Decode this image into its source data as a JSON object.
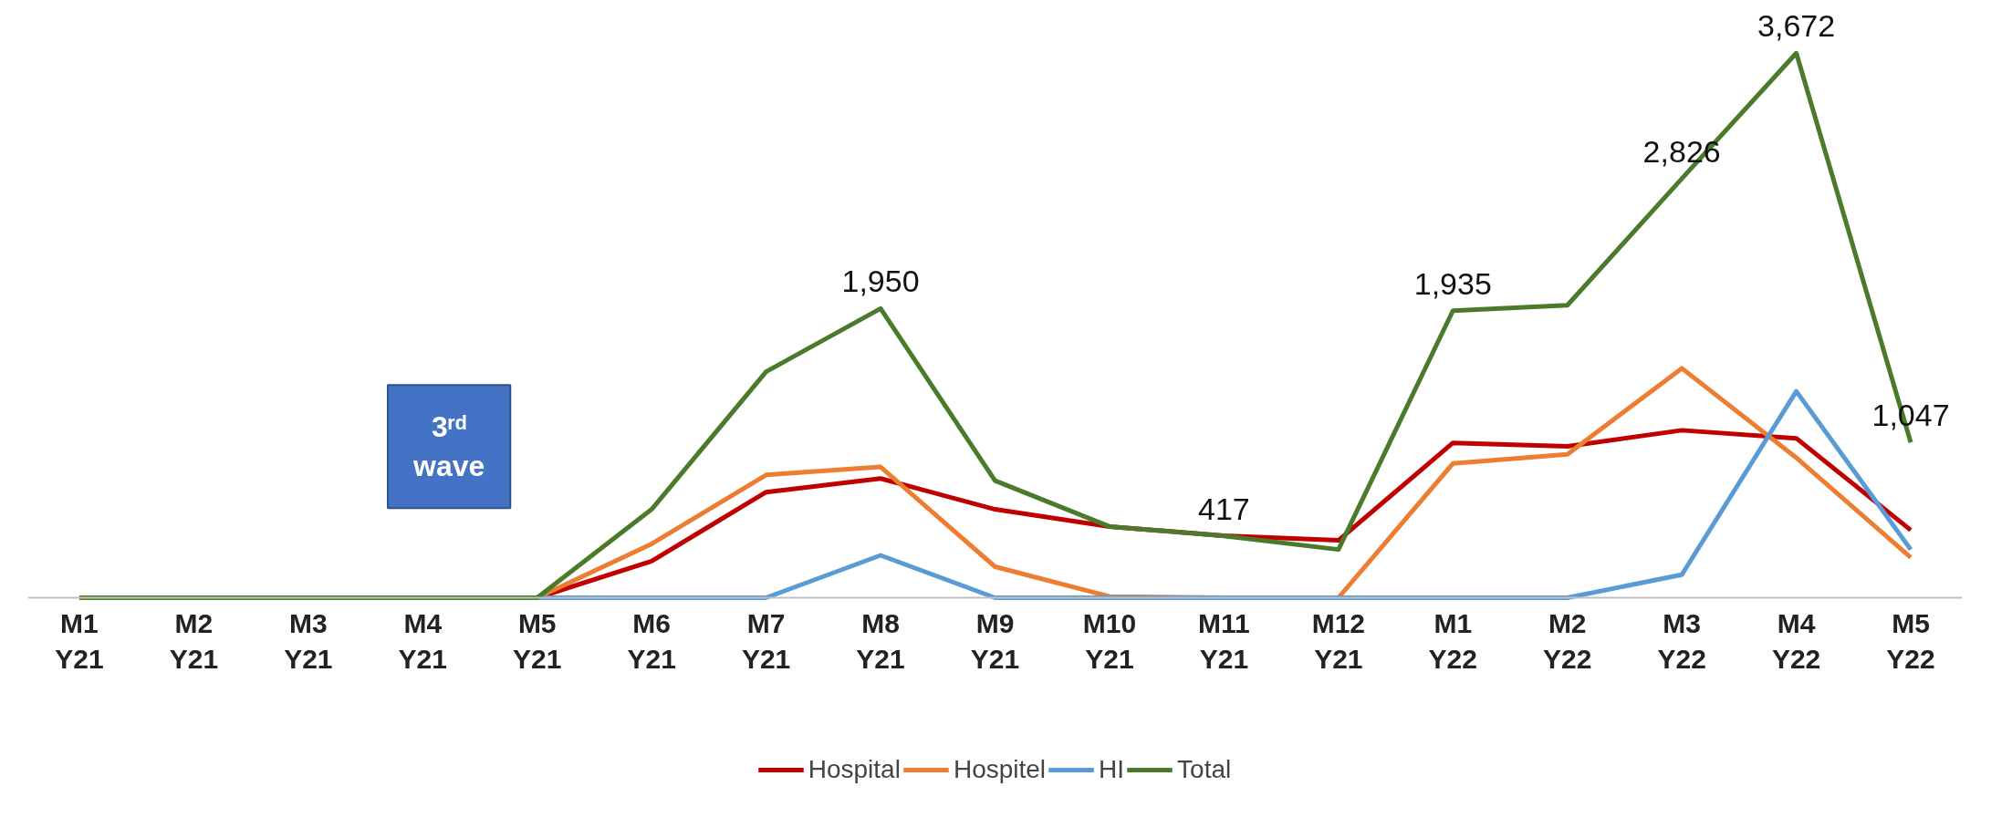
{
  "chart_data": {
    "type": "line",
    "categories": [
      "M1\nY21",
      "M2\nY21",
      "M3\nY21",
      "M4\nY21",
      "M5\nY21",
      "M6\nY21",
      "M7\nY21",
      "M8\nY21",
      "M9\nY21",
      "M10\nY21",
      "M11\nY21",
      "M12\nY21",
      "M1\nY22",
      "M2\nY22",
      "M3\nY22",
      "M4\nY22",
      "M5\nY22"
    ],
    "series": [
      {
        "name": "Hospital",
        "color": "#c00000",
        "values": [
          null,
          null,
          null,
          0,
          0,
          247,
          712,
          804,
          596,
          480,
          418,
          387,
          1044,
          1021,
          1129,
          1075,
          456
        ]
      },
      {
        "name": "Hospitel",
        "color": "#ed7d31",
        "values": [
          null,
          null,
          null,
          0,
          0,
          363,
          828,
          882,
          209,
          8,
          0,
          0,
          905,
          967,
          1547,
          944,
          271
        ]
      },
      {
        "name": "HI",
        "color": "#5b9bd5",
        "values": [
          null,
          null,
          null,
          0,
          0,
          0,
          0,
          286,
          0,
          0,
          0,
          0,
          0,
          0,
          155,
          1392,
          325
        ]
      },
      {
        "name": "Total",
        "color": "#4a7a2a",
        "values": [
          0,
          0,
          0,
          0,
          0,
          596,
          1524,
          1950,
          789,
          480,
          417,
          325,
          1935,
          1972,
          2826,
          3672,
          1047
        ],
        "value_labels": [
          null,
          null,
          null,
          null,
          null,
          null,
          null,
          "1,950",
          null,
          null,
          "417",
          null,
          "1,935",
          null,
          "2,826",
          "3,672",
          "1,047"
        ]
      }
    ],
    "annotations": [
      "3ʳᵈ\nwave"
    ],
    "legend": "bottom",
    "grid": false,
    "tick_labels": "x",
    "line_style": "solid",
    "marker": "none"
  }
}
